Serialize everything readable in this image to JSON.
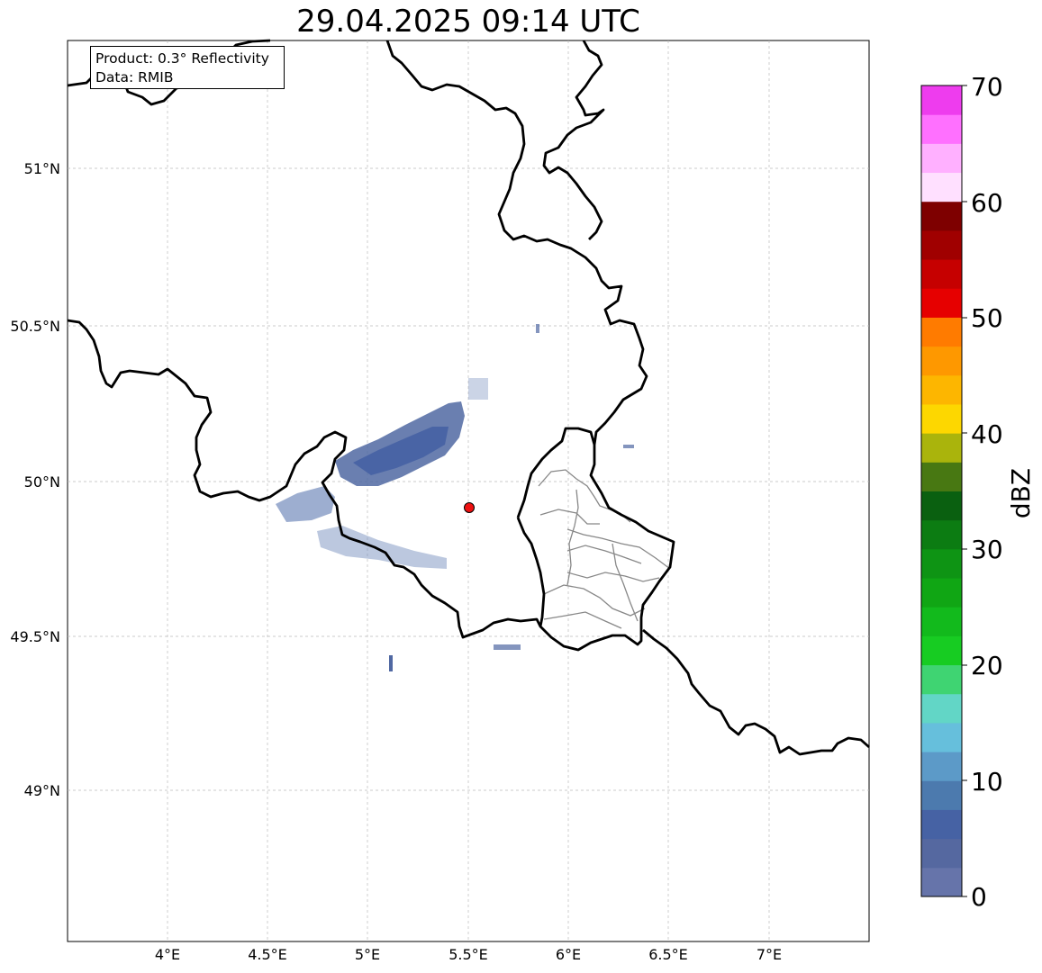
{
  "title": "29.04.2025 09:14 UTC",
  "info": {
    "product": "Product: 0.3° Reflectivity",
    "source": "Data: RMIB"
  },
  "map": {
    "lon_ticks": [
      "4°E",
      "4.5°E",
      "5°E",
      "5.5°E",
      "6°E",
      "6.5°E",
      "7°E"
    ],
    "lat_ticks": [
      "51°N",
      "50.5°N",
      "50°N",
      "49.5°N",
      "49°N"
    ],
    "radar_site": {
      "lon": 5.5,
      "lat": 49.92,
      "color": "#ee1111"
    },
    "grid": true
  },
  "colorbar": {
    "label": "dBZ",
    "ticks": [
      "0",
      "10",
      "20",
      "30",
      "40",
      "50",
      "60",
      "70"
    ],
    "min": 0,
    "max": 70,
    "colors": [
      "#6674aa",
      "#5568a0",
      "#4662a4",
      "#4c7aae",
      "#5c9ac8",
      "#66bfdc",
      "#62d6c6",
      "#3fd472",
      "#17cc22",
      "#12ba1c",
      "#10a614",
      "#0e9414",
      "#0c7c12",
      "#0a6010",
      "#487812",
      "#aab40c",
      "#fdd700",
      "#fdb600",
      "#fe9800",
      "#ff7b00",
      "#e60000",
      "#c60000",
      "#a00000",
      "#7e0000",
      "#ffe0ff",
      "#ffb0ff",
      "#ff70ff",
      "#ee3cee"
    ]
  }
}
